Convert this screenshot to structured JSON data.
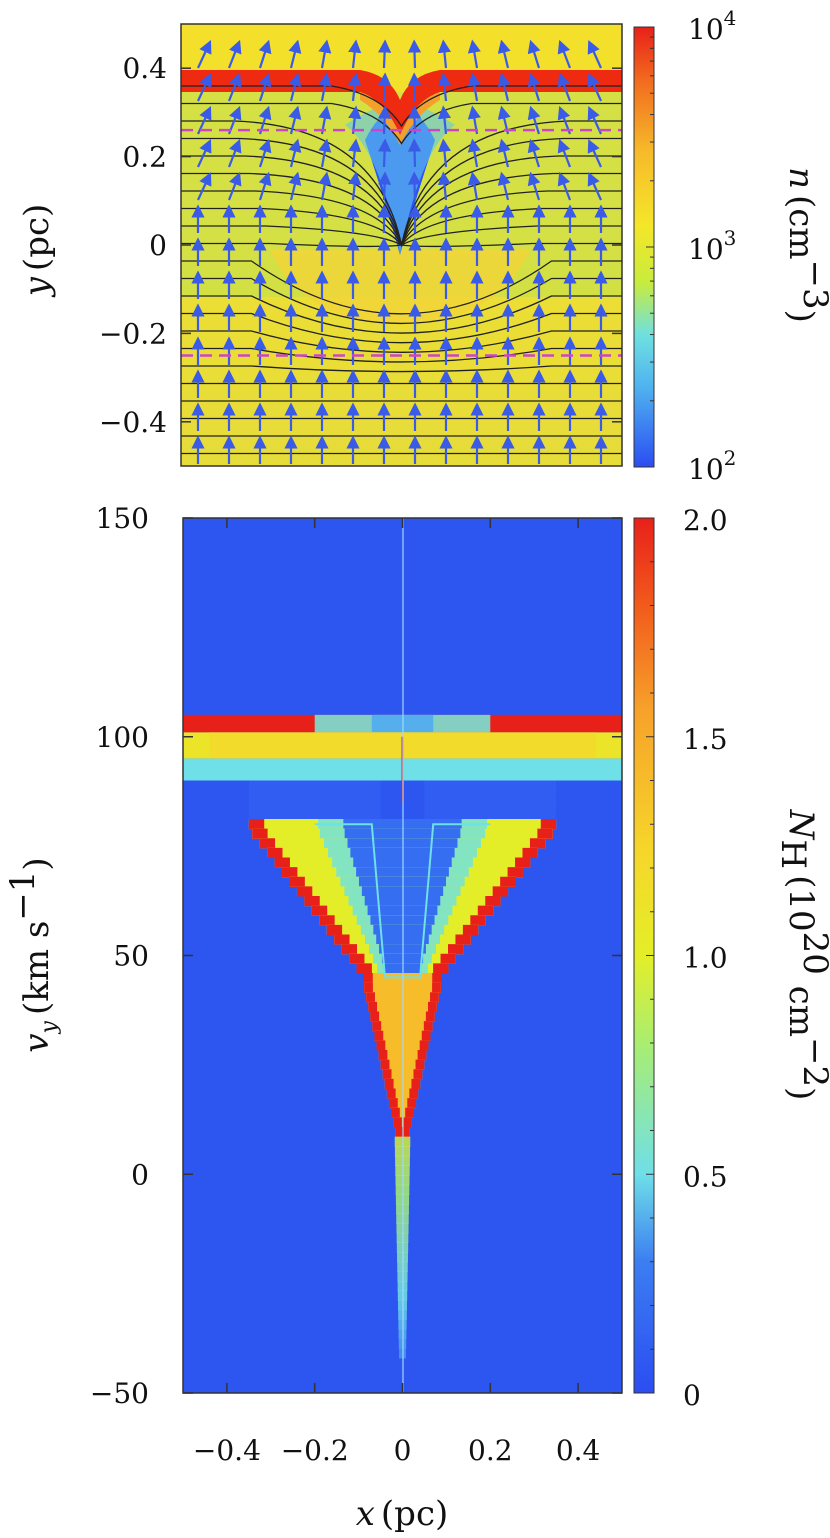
{
  "chart_data": [
    {
      "type": "heatmap",
      "xlabel_var": "",
      "xlabel_unit": "",
      "ylabel_var": "y",
      "ylabel_unit": "(pc)",
      "xlim": [
        -0.5,
        0.5
      ],
      "ylim": [
        -0.5,
        0.5
      ],
      "yticks": [
        "0.4",
        "0.2",
        "0",
        "−0.2",
        "−0.4"
      ],
      "ytick_values": [
        0.4,
        0.2,
        0,
        -0.2,
        -0.4
      ],
      "colorbar": {
        "label_var": "n",
        "label_unit": "(cm",
        "label_exp": "−3",
        "label_close": ")",
        "scale": "log",
        "range": [
          100,
          10000
        ],
        "ticks": [
          {
            "base": "10",
            "exp": "4",
            "value": 10000
          },
          {
            "base": "10",
            "exp": "3",
            "value": 1000
          },
          {
            "base": "10",
            "exp": "2",
            "value": 100
          }
        ]
      },
      "dense_layer_y": 0.38,
      "dashed_lines_y": [
        0.26,
        -0.25
      ],
      "overlays": [
        "magnetic field lines",
        "velocity vectors"
      ],
      "colors": {
        "dense_layer": "#ee2a10",
        "background": "#f2e02c",
        "cavity": "#2a50f0",
        "dashed": "#cc44cc",
        "vectors": "#3a5ae8"
      }
    },
    {
      "type": "heatmap",
      "xlabel_var": "x",
      "xlabel_unit": "(pc)",
      "ylabel_var": "v",
      "ylabel_sub": "y",
      "ylabel_unit": "(km s",
      "ylabel_exp": "−1",
      "ylabel_close": ")",
      "xlim": [
        -0.5,
        0.5
      ],
      "ylim": [
        -50,
        150
      ],
      "xticks": [
        "−0.4",
        "−0.2",
        "0",
        "0.2",
        "0.4"
      ],
      "xtick_values": [
        -0.4,
        -0.2,
        0,
        0.2,
        0.4
      ],
      "yticks": [
        "150",
        "100",
        "50",
        "0",
        "−50"
      ],
      "ytick_values": [
        150,
        100,
        50,
        0,
        -50
      ],
      "colorbar": {
        "label_var": "N",
        "label_sub": "H",
        "label_unit": "(10",
        "label_exp1": "20",
        "label_mid": " cm",
        "label_exp2": "−2",
        "label_close": ")",
        "scale": "linear",
        "range": [
          0,
          2.0
        ],
        "ticks": [
          {
            "label": "2.0",
            "value": 2.0
          },
          {
            "label": "1.5",
            "value": 1.5
          },
          {
            "label": "1.0",
            "value": 1.0
          },
          {
            "label": "0.5",
            "value": 0.5
          },
          {
            "label": "0",
            "value": 0
          }
        ]
      },
      "bands": [
        {
          "v_low": 101,
          "v_high": 105,
          "level": 2.0
        },
        {
          "v_low": 95,
          "v_high": 101,
          "level": 1.1
        },
        {
          "v_low": 90,
          "v_high": 95,
          "level": 0.5
        }
      ],
      "triangle_outer_edge": [
        [
          0.34,
          80
        ],
        [
          0.25,
          70
        ],
        [
          0.15,
          57
        ],
        [
          0.08,
          42
        ],
        [
          0.04,
          30
        ],
        [
          0.02,
          10
        ]
      ],
      "colors": {
        "background": "#2d55f0"
      }
    }
  ]
}
